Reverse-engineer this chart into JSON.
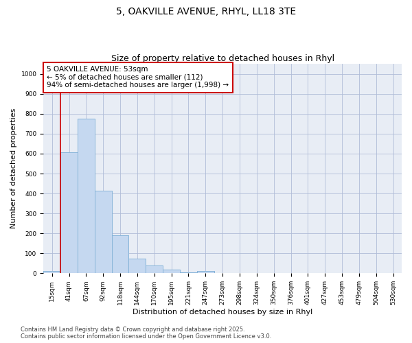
{
  "title_line1": "5, OAKVILLE AVENUE, RHYL, LL18 3TE",
  "title_line2": "Size of property relative to detached houses in Rhyl",
  "xlabel": "Distribution of detached houses by size in Rhyl",
  "ylabel": "Number of detached properties",
  "bar_color": "#c5d8f0",
  "bar_edge_color": "#7aadd4",
  "bar_edge_width": 0.5,
  "grid_color": "#b0bcd8",
  "bg_color": "#e8edf5",
  "categories": [
    "15sqm",
    "41sqm",
    "67sqm",
    "92sqm",
    "118sqm",
    "144sqm",
    "170sqm",
    "195sqm",
    "221sqm",
    "247sqm",
    "273sqm",
    "298sqm",
    "324sqm",
    "350sqm",
    "376sqm",
    "401sqm",
    "427sqm",
    "453sqm",
    "479sqm",
    "504sqm",
    "530sqm"
  ],
  "values": [
    12,
    608,
    775,
    415,
    190,
    75,
    40,
    18,
    5,
    12,
    0,
    0,
    0,
    0,
    0,
    0,
    0,
    0,
    0,
    0,
    0
  ],
  "vline_color": "#cc0000",
  "annotation_text": "5 OAKVILLE AVENUE: 53sqm\n← 5% of detached houses are smaller (112)\n94% of semi-detached houses are larger (1,998) →",
  "annotation_box_color": "white",
  "annotation_box_edge_color": "#cc0000",
  "ylim": [
    0,
    1050
  ],
  "yticks": [
    0,
    100,
    200,
    300,
    400,
    500,
    600,
    700,
    800,
    900,
    1000
  ],
  "footer_text": "Contains HM Land Registry data © Crown copyright and database right 2025.\nContains public sector information licensed under the Open Government Licence v3.0.",
  "title_fontsize": 10,
  "subtitle_fontsize": 9,
  "axis_label_fontsize": 8,
  "tick_fontsize": 6.5,
  "annotation_fontsize": 7.5,
  "footer_fontsize": 6
}
